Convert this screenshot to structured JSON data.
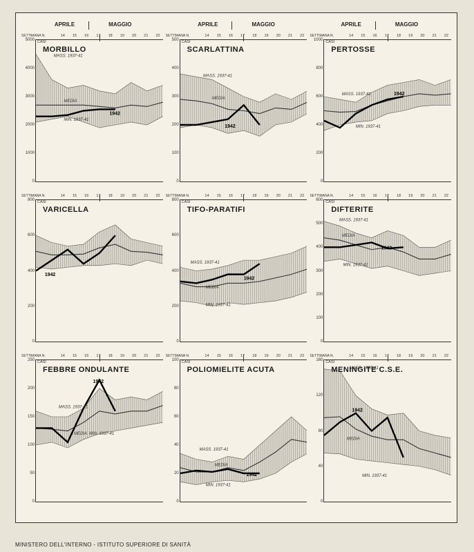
{
  "months": {
    "left": "APRILE",
    "right": "MAGGIO"
  },
  "week_label": "SETTIMANA N.",
  "weeks": [
    "14",
    "15",
    "16",
    "17",
    "18",
    "19",
    "20",
    "21",
    "22"
  ],
  "casi_label": "CASI",
  "labels": {
    "mass": "MASS. 1937-41",
    "min": "MIN. 1937-41",
    "media": "MEDIA",
    "year": "1942"
  },
  "footer": "MINISTERO DELL'INTERNO - ISTITUTO SUPERIORE DI SANITÀ",
  "panels": [
    {
      "title": "MORBILLO",
      "ymax": 5000,
      "ystep": 1000,
      "mass": [
        4500,
        3600,
        3300,
        3400,
        3200,
        3100,
        3500,
        3200,
        3400
      ],
      "min": [
        2100,
        2200,
        2300,
        2100,
        1900,
        2000,
        2100,
        2000,
        2300
      ],
      "media": [
        2700,
        2700,
        2700,
        2700,
        2650,
        2600,
        2700,
        2650,
        2800
      ],
      "data": [
        2300,
        2300,
        2350,
        2500,
        2550,
        2550
      ],
      "ann": {
        "mass": [
          14,
          4400
        ],
        "media": [
          22,
          2800
        ],
        "min": [
          22,
          2150
        ],
        "year": [
          58,
          2350
        ]
      }
    },
    {
      "title": "SCARLATTINA",
      "ymax": 500,
      "ystep": 100,
      "mass": [
        380,
        370,
        360,
        330,
        300,
        280,
        310,
        290,
        320
      ],
      "min": [
        190,
        200,
        190,
        170,
        180,
        160,
        200,
        210,
        240
      ],
      "media": [
        290,
        285,
        275,
        255,
        250,
        240,
        260,
        255,
        280
      ],
      "data": [
        200,
        200,
        210,
        220,
        270,
        200
      ],
      "ann": {
        "mass": [
          18,
          370
        ],
        "media": [
          25,
          290
        ],
        "min": [
          0,
          0
        ],
        "year": [
          35,
          190
        ]
      }
    },
    {
      "title": "PERTOSSE",
      "ymax": 1000,
      "ystep": 200,
      "mass": [
        600,
        580,
        560,
        630,
        680,
        700,
        720,
        680,
        720
      ],
      "min": [
        360,
        400,
        420,
        430,
        480,
        500,
        530,
        540,
        540
      ],
      "media": [
        500,
        490,
        495,
        540,
        570,
        600,
        620,
        610,
        620
      ],
      "data": [
        430,
        380,
        480,
        540,
        580,
        600
      ],
      "ann": {
        "mass": [
          14,
          610
        ],
        "media": [
          0,
          0
        ],
        "min": [
          25,
          380
        ],
        "year": [
          55,
          610
        ]
      }
    },
    {
      "title": "VARICELLA",
      "ymax": 800,
      "ystep": 200,
      "mass": [
        600,
        560,
        540,
        550,
        620,
        660,
        580,
        560,
        540
      ],
      "min": [
        420,
        410,
        420,
        430,
        430,
        440,
        430,
        460,
        440
      ],
      "media": [
        510,
        490,
        490,
        495,
        530,
        550,
        510,
        505,
        490
      ],
      "data": [
        400,
        460,
        520,
        440,
        500,
        600
      ],
      "ann": {
        "mass": [
          0,
          0
        ],
        "media": [
          0,
          0
        ],
        "min": [
          0,
          0
        ],
        "year": [
          7,
          370
        ]
      }
    },
    {
      "title": "TIFO-PARATIFI",
      "ymax": 800,
      "ystep": 200,
      "mass": [
        420,
        400,
        410,
        430,
        460,
        460,
        480,
        500,
        540
      ],
      "min": [
        230,
        220,
        200,
        220,
        210,
        220,
        230,
        250,
        280
      ],
      "media": [
        330,
        310,
        310,
        330,
        330,
        340,
        360,
        380,
        410
      ],
      "data": [
        340,
        330,
        350,
        380,
        380,
        440
      ],
      "ann": {
        "mass": [
          8,
          440
        ],
        "media": [
          20,
          300
        ],
        "min": [
          20,
          200
        ],
        "year": [
          50,
          350
        ]
      }
    },
    {
      "title": "DIFTERITE",
      "ymax": 600,
      "ystep": 100,
      "mass": [
        510,
        490,
        460,
        440,
        470,
        450,
        400,
        400,
        430
      ],
      "min": [
        340,
        350,
        330,
        310,
        320,
        300,
        280,
        290,
        300
      ],
      "media": [
        440,
        430,
        410,
        390,
        400,
        380,
        350,
        350,
        370
      ],
      "data": [
        400,
        400,
        410,
        420,
        395,
        400
      ],
      "ann": {
        "mass": [
          12,
          510
        ],
        "media": [
          14,
          445
        ],
        "min": [
          15,
          320
        ],
        "year": [
          45,
          390
        ]
      }
    },
    {
      "title": "FEBBRE ONDULANTE",
      "ymax": 250,
      "ystep": 50,
      "mass": [
        160,
        150,
        150,
        165,
        200,
        180,
        185,
        180,
        195
      ],
      "min": [
        100,
        105,
        95,
        110,
        120,
        125,
        130,
        135,
        140
      ],
      "media": [
        130,
        128,
        125,
        140,
        160,
        155,
        160,
        160,
        170
      ],
      "data": [
        130,
        130,
        105,
        165,
        215,
        160
      ],
      "ann": {
        "mass": [
          18,
          165
        ],
        "media": [
          30,
          118
        ],
        "min": [
          42,
          118
        ],
        "year": [
          45,
          210
        ]
      }
    },
    {
      "title": "POLIOMIELITE ACUTA",
      "ymax": 100,
      "ystep": 20,
      "mass": [
        34,
        30,
        28,
        32,
        30,
        40,
        50,
        60,
        50
      ],
      "min": [
        14,
        12,
        14,
        15,
        14,
        16,
        20,
        28,
        34
      ],
      "media": [
        24,
        21,
        21,
        24,
        22,
        28,
        35,
        44,
        42
      ],
      "data": [
        20,
        22,
        21,
        23,
        20,
        20
      ],
      "ann": {
        "mass": [
          15,
          36
        ],
        "media": [
          27,
          25
        ],
        "min": [
          20,
          11
        ],
        "year": [
          52,
          18
        ]
      }
    },
    {
      "title": "MENINGITE  C.S.E.",
      "ymax": 160,
      "ystep": 40,
      "mass": [
        150,
        148,
        120,
        105,
        98,
        100,
        80,
        75,
        72
      ],
      "min": [
        55,
        54,
        48,
        46,
        44,
        42,
        40,
        36,
        30
      ],
      "media": [
        95,
        96,
        82,
        74,
        70,
        70,
        60,
        55,
        50
      ],
      "data": [
        75,
        90,
        100,
        80,
        95,
        50
      ],
      "ann": {
        "mass": [
          20,
          150
        ],
        "media": [
          18,
          70
        ],
        "min": [
          30,
          28
        ],
        "year": [
          22,
          102
        ]
      }
    }
  ],
  "colors": {
    "band": "#c8c4b8",
    "media": "#333333",
    "data": "#000000",
    "bg": "#f5f1e6"
  }
}
